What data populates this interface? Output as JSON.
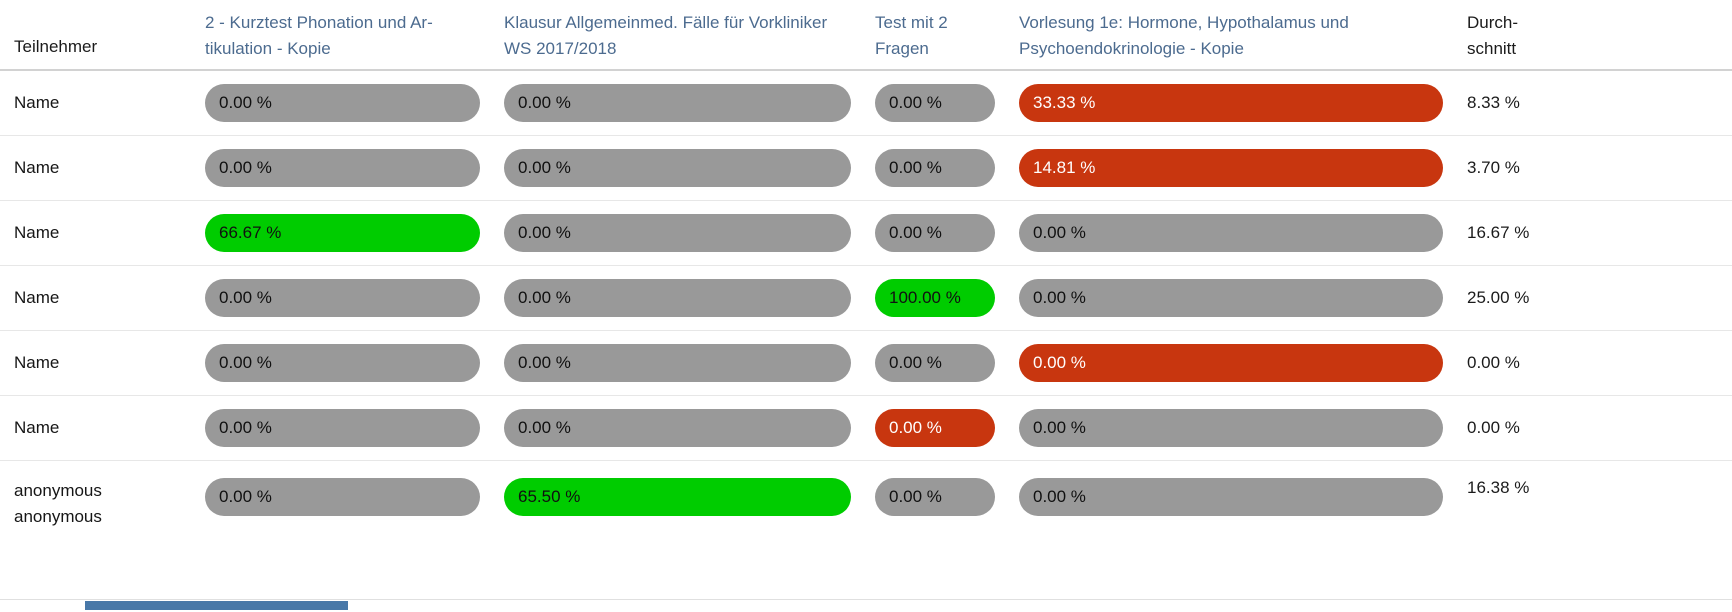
{
  "colors": {
    "header_link": "#4c6b8f",
    "badge_neutral": "#999999",
    "badge_passed": "#00cc00",
    "badge_failed": "#c8360f",
    "scrollbar_thumb": "#4878a8"
  },
  "header": {
    "participant": "Teilnehmer",
    "tests": [
      "2 - Kurztest Phonation und Ar­tikulation - Kopie",
      "Klausur Allgemeinmed. Fälle für Vorkli­niker WS 2017/2018",
      "Test mit 2 Fragen",
      "Vorlesung 1e: Hormone, Hypothalamus und Psychoendokrinologie - Kopie"
    ],
    "average": "Durch­schnitt"
  },
  "rows": [
    {
      "name": "Name",
      "scores": [
        {
          "text": "0.00 %",
          "status": "neutral"
        },
        {
          "text": "0.00 %",
          "status": "neutral"
        },
        {
          "text": "0.00 %",
          "status": "neutral"
        },
        {
          "text": "33.33 %",
          "status": "failed"
        }
      ],
      "average": "8.33 %"
    },
    {
      "name": "Name",
      "scores": [
        {
          "text": "0.00 %",
          "status": "neutral"
        },
        {
          "text": "0.00 %",
          "status": "neutral"
        },
        {
          "text": "0.00 %",
          "status": "neutral"
        },
        {
          "text": "14.81 %",
          "status": "failed"
        }
      ],
      "average": "3.70 %"
    },
    {
      "name": "Name",
      "scores": [
        {
          "text": "66.67 %",
          "status": "passed"
        },
        {
          "text": "0.00 %",
          "status": "neutral"
        },
        {
          "text": "0.00 %",
          "status": "neutral"
        },
        {
          "text": "0.00 %",
          "status": "neutral"
        }
      ],
      "average": "16.67 %"
    },
    {
      "name": "Name",
      "scores": [
        {
          "text": "0.00 %",
          "status": "neutral"
        },
        {
          "text": "0.00 %",
          "status": "neutral"
        },
        {
          "text": "100.00 %",
          "status": "passed"
        },
        {
          "text": "0.00 %",
          "status": "neutral"
        }
      ],
      "average": "25.00 %"
    },
    {
      "name": "Name",
      "scores": [
        {
          "text": "0.00 %",
          "status": "neutral"
        },
        {
          "text": "0.00 %",
          "status": "neutral"
        },
        {
          "text": "0.00 %",
          "status": "neutral"
        },
        {
          "text": "0.00 %",
          "status": "failed"
        }
      ],
      "average": "0.00 %"
    },
    {
      "name": "Name",
      "scores": [
        {
          "text": "0.00 %",
          "status": "neutral"
        },
        {
          "text": "0.00 %",
          "status": "neutral"
        },
        {
          "text": "0.00 %",
          "status": "failed"
        },
        {
          "text": "0.00 %",
          "status": "neutral"
        }
      ],
      "average": "0.00 %"
    },
    {
      "name": "anonymous anonymous",
      "scores": [
        {
          "text": "0.00 %",
          "status": "neutral"
        },
        {
          "text": "65.50 %",
          "status": "passed"
        },
        {
          "text": "0.00 %",
          "status": "neutral"
        },
        {
          "text": "0.00 %",
          "status": "neutral"
        }
      ],
      "average": "16.38 %"
    }
  ]
}
